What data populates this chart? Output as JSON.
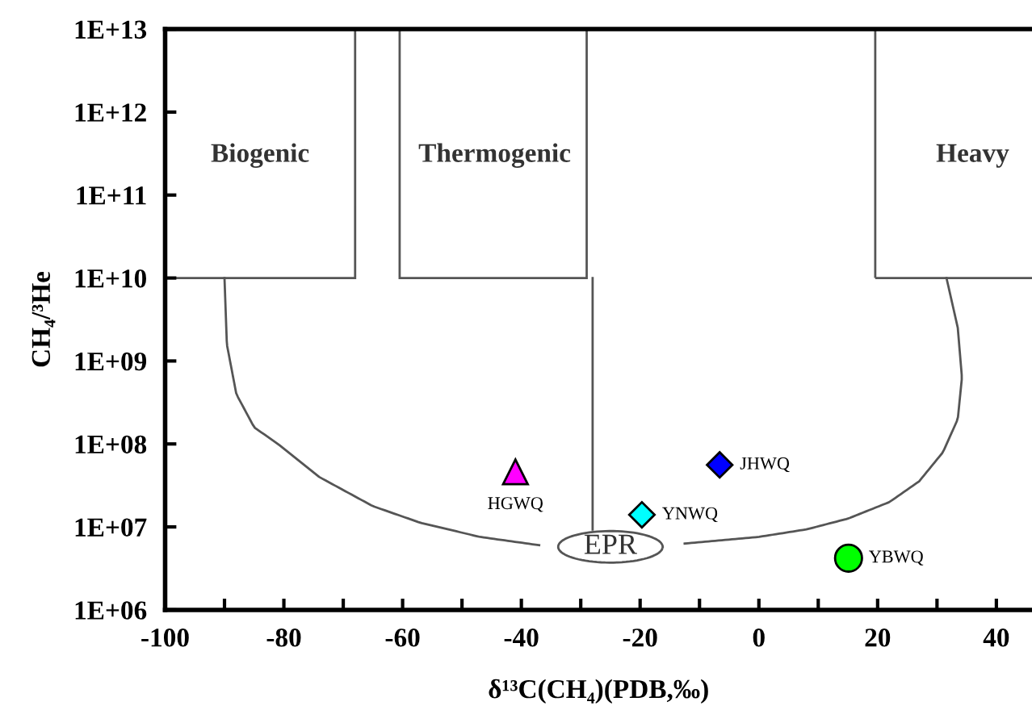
{
  "chart_data": {
    "type": "scatter",
    "xlabel": "δ¹³C(CH₄)(PDB,‰)",
    "ylabel": "CH₄/³He",
    "log": "y",
    "grid": false,
    "legend": false,
    "xlim": [
      -100,
      46
    ],
    "ylim": [
      1000000.0,
      10000000000000.0
    ],
    "xticks": [
      -100,
      {
        "value": -90,
        "label": null
      },
      -80,
      {
        "value": -70,
        "label": null
      },
      -60,
      {
        "value": -50,
        "label": null
      },
      -40,
      {
        "value": -30,
        "label": null
      },
      -20,
      {
        "value": -10,
        "label": null
      },
      0,
      {
        "value": 10,
        "label": null
      },
      20,
      {
        "value": 30,
        "label": null
      },
      40
    ],
    "yticks": [
      {
        "value": 1000000.0,
        "label": "1E+06"
      },
      {
        "value": 10000000.0,
        "label": "1E+07"
      },
      {
        "value": 100000000.0,
        "label": "1E+08"
      },
      {
        "value": 1000000000.0,
        "label": "1E+09"
      },
      {
        "value": 10000000000.0,
        "label": "1E+10"
      },
      {
        "value": 100000000000.0,
        "label": "1E+11"
      },
      {
        "value": 1000000000000.0,
        "label": "1E+12"
      },
      {
        "value": 10000000000000.0,
        "label": "1E+13"
      }
    ],
    "series": [
      {
        "name": "HGWQ",
        "color": "#ff00ff",
        "marker": "triangle",
        "x": [
          -41
        ],
        "values": [
          46000000.0
        ]
      },
      {
        "name": "JHWQ",
        "color": "#0000ff",
        "marker": "diamond",
        "x": [
          -6.6
        ],
        "values": [
          56000000.0
        ]
      },
      {
        "name": "YNWQ",
        "color": "#00ffff",
        "marker": "diamond",
        "x": [
          -19.7
        ],
        "values": [
          14000000.0
        ]
      },
      {
        "name": "YBWQ",
        "color": "#00ff00",
        "marker": "circle",
        "x": [
          15.1
        ],
        "values": [
          4200000.0
        ]
      }
    ],
    "annotations": [
      "Biogenic",
      "Thermogenic",
      "Heavy",
      "EPR"
    ]
  }
}
